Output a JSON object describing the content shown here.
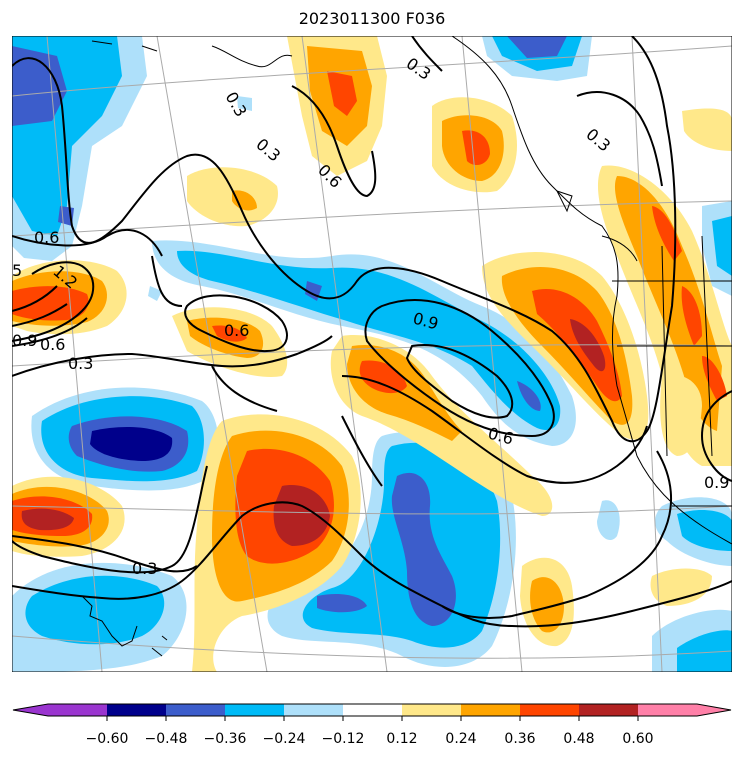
{
  "title": "2023011300 F036",
  "colors": {
    "lt_-0.60": "#9a35cf",
    "-0.60_-0.48": "#00008b",
    "-0.48_-0.36": "#3c5dcb",
    "-0.36_-0.24": "#00bbf7",
    "-0.24_-0.12": "#aee0fa",
    "-0.12_0.12": "#ffffff",
    "0.12_0.24": "#ffe88a",
    "0.24_0.36": "#ffa500",
    "0.36_0.48": "#ff4500",
    "0.48_0.60": "#b22222",
    "gt_0.60": "#ff80a8"
  },
  "contour_labels": [
    "0.3",
    "0.3",
    "0.3",
    "0.6",
    "0.3",
    "0.6",
    "1.2",
    "5",
    "0.9",
    "0.6",
    "0.3",
    "0.6",
    "0.9",
    "0.6",
    "0.3",
    "0.9"
  ],
  "colorbar": {
    "ticks": [
      "−0.60",
      "−0.48",
      "−0.36",
      "−0.24",
      "−0.12",
      "0.12",
      "0.24",
      "0.36",
      "0.48",
      "0.60"
    ]
  }
}
